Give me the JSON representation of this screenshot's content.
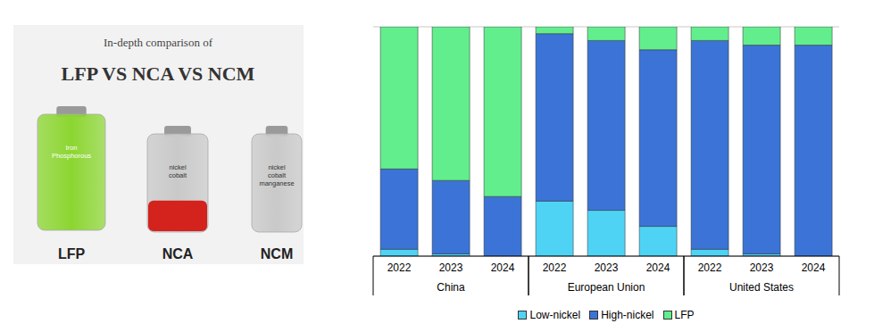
{
  "illustration": {
    "title": "In-depth comparison of",
    "heading": "LFP VS NCA VS NCM",
    "batteries": [
      {
        "label": "LFP",
        "text": "Iron Phosphorous",
        "color": "#8bd630"
      },
      {
        "label": "NCA",
        "text": "nickel cobalt",
        "color": "#c9c9c9"
      },
      {
        "label": "NCM",
        "text": "nickel cobalt manganese",
        "color": "#c9c9c9"
      }
    ]
  },
  "chart_data": {
    "type": "bar",
    "stacked": true,
    "categories": [
      "2022",
      "2023",
      "2024",
      "2022",
      "2023",
      "2024",
      "2022",
      "2023",
      "2024"
    ],
    "category_groups": [
      "China",
      "China",
      "China",
      "European Union",
      "European Union",
      "European Union",
      "United States",
      "United States",
      "United States"
    ],
    "series": [
      {
        "name": "Low-nickel",
        "color": "#4fd3f5",
        "values": [
          3,
          1,
          0,
          24,
          20,
          13,
          3,
          1,
          0
        ]
      },
      {
        "name": "High-nickel",
        "color": "#3b74d6",
        "values": [
          35,
          32,
          26,
          73,
          74,
          77,
          91,
          91,
          92
        ]
      },
      {
        "name": "LFP",
        "color": "#63ee8e",
        "values": [
          62,
          67,
          74,
          3,
          6,
          10,
          6,
          8,
          8
        ]
      }
    ],
    "ylim": [
      0,
      100
    ],
    "yticks": [
      0,
      20,
      40,
      60,
      80,
      100
    ],
    "grid": true,
    "tick_labels": "x",
    "legend": "bottom"
  }
}
